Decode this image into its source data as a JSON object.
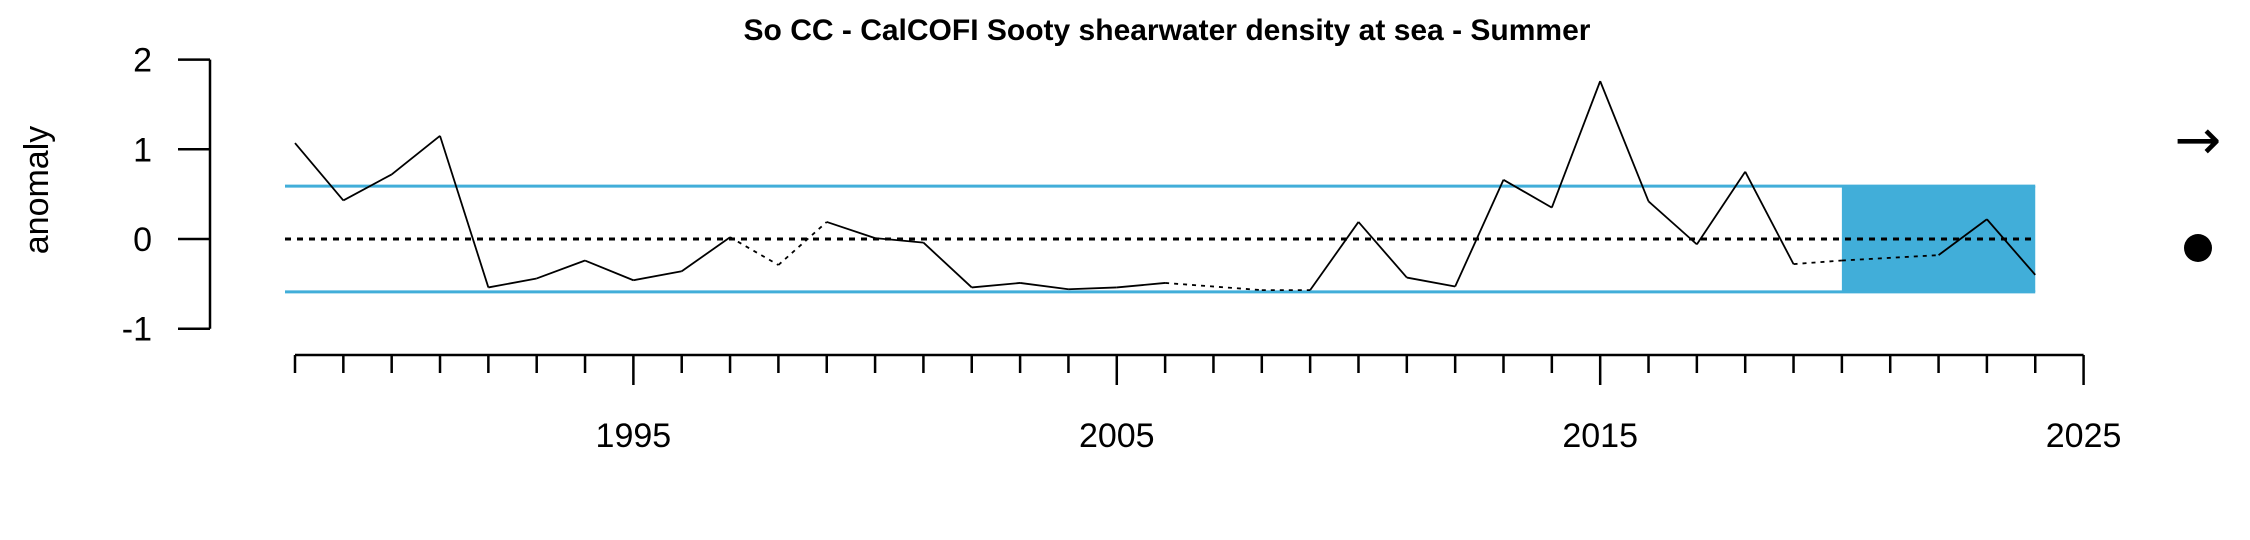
{
  "chart_data": {
    "type": "line",
    "title": "So CC - CalCOFI Sooty shearwater density at sea - Summer",
    "xlabel": "",
    "ylabel": "anomaly",
    "xlim": [
      1987.5,
      2025
    ],
    "ylim": [
      -1,
      2
    ],
    "x_tick_labels": [
      "1995",
      "2005",
      "2015",
      "2025"
    ],
    "x_tick_values": [
      1995,
      2005,
      2015,
      2025
    ],
    "y_tick_values": [
      2,
      1,
      0,
      -1
    ],
    "y_tick_labels": [
      "2",
      "1",
      "0",
      "-1"
    ],
    "mean_line": 0,
    "sd_band": [
      -0.59,
      0.59
    ],
    "recent_window": [
      2020,
      2024
    ],
    "colors": {
      "band": "#41AED9",
      "line": "#000000"
    },
    "series": [
      {
        "x": [
          1988,
          1989,
          1990,
          1991,
          1992,
          1993,
          1994,
          1995,
          1996,
          1997,
          1999,
          2000,
          2001,
          2002,
          2003,
          2004,
          2005,
          2006,
          2009,
          2010,
          2011,
          2012,
          2013,
          2014,
          2015,
          2016,
          2017,
          2018,
          2019,
          2022,
          2023,
          2024
        ],
        "y": [
          1.07,
          0.43,
          0.72,
          1.15,
          -0.54,
          -0.44,
          -0.24,
          -0.46,
          -0.36,
          0.02,
          0.19,
          0.01,
          -0.04,
          -0.54,
          -0.49,
          -0.56,
          -0.54,
          -0.49,
          -0.57,
          0.19,
          -0.43,
          -0.53,
          0.66,
          0.35,
          1.76,
          0.42,
          -0.06,
          0.75,
          -0.28,
          -0.18,
          0.22,
          -0.4
        ],
        "gap_points": {
          "x": [
            1998,
            2008,
            2020
          ],
          "y": [
            -0.29,
            -0.57,
            -0.24
          ]
        }
      }
    ],
    "trend_symbol": "→",
    "mean_symbol": "●"
  }
}
